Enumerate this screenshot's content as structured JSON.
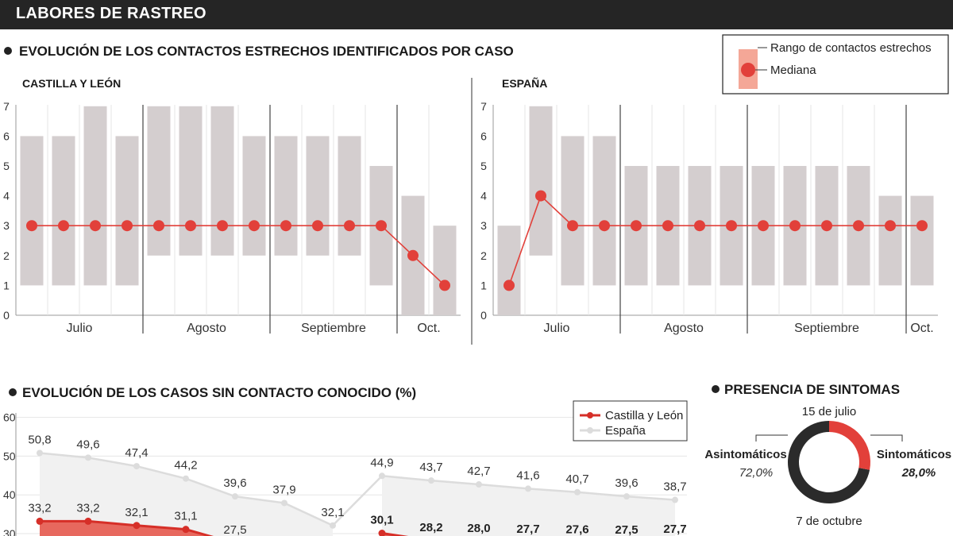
{
  "header": {
    "title": "LABORES DE RASTREO"
  },
  "section1": {
    "title": "EVOLUCIÓN DE LOS CONTACTOS ESTRECHOS IDENTIFICADOS POR CASO"
  },
  "legend1": {
    "range": "Rango de contactos estrechos",
    "median": "Mediana"
  },
  "section2": {
    "title": "EVOLUCIÓN DE LOS CASOS SIN CONTACTO CONOCIDO (%)"
  },
  "section3": {
    "title": "PRESENCIA DE SINTOMAS"
  },
  "colors": {
    "range_bar": "#d4cecf",
    "median": "#e2403a",
    "espana_line": "#dcdcdc",
    "espana_area": "#f1f1f1",
    "cyl_area": "#e7685e",
    "donut_dark": "#2b2b2b",
    "donut_red": "#e2403a",
    "legend_box": "#f4a797"
  },
  "chart_data": [
    {
      "type": "bar",
      "title": "CASTILLA Y LEÓN",
      "months": [
        "Julio",
        "Agosto",
        "Septiembre",
        "Oct."
      ],
      "weeks_per_month": [
        4,
        4,
        4,
        2
      ],
      "yticks": [
        0,
        1,
        2,
        3,
        4,
        5,
        6,
        7
      ],
      "ylim": [
        0,
        7
      ],
      "range_low": [
        1,
        1,
        1,
        1,
        2,
        2,
        2,
        2,
        2,
        2,
        2,
        1,
        0,
        0
      ],
      "range_high": [
        6,
        6,
        7,
        6,
        7,
        7,
        7,
        6,
        6,
        6,
        6,
        5,
        4,
        3
      ],
      "median": [
        3,
        3,
        3,
        3,
        3,
        3,
        3,
        3,
        3,
        3,
        3,
        3,
        2,
        1
      ]
    },
    {
      "type": "bar",
      "title": "ESPAÑA",
      "months": [
        "Julio",
        "Agosto",
        "Septiembre",
        "Oct."
      ],
      "weeks_per_month": [
        4,
        4,
        5,
        1
      ],
      "yticks": [
        0,
        1,
        2,
        3,
        4,
        5,
        6,
        7
      ],
      "ylim": [
        0,
        7
      ],
      "range_low": [
        0,
        2,
        1,
        1,
        1,
        1,
        1,
        1,
        1,
        1,
        1,
        1,
        1,
        1
      ],
      "range_high": [
        3,
        7,
        6,
        6,
        5,
        5,
        5,
        5,
        5,
        5,
        5,
        5,
        4,
        4
      ],
      "median": [
        1,
        4,
        3,
        3,
        3,
        3,
        3,
        3,
        3,
        3,
        3,
        3,
        3,
        3
      ]
    },
    {
      "type": "line",
      "yticks": [
        30,
        40,
        50,
        60
      ],
      "ylim": [
        30,
        60
      ],
      "series": [
        {
          "name": "Castilla y León",
          "values": [
            33.2,
            33.2,
            32.1,
            31.1,
            27.5,
            null,
            null,
            30.1,
            28.2,
            28.0,
            27.7,
            27.6,
            27.5,
            27.7
          ],
          "labels": [
            "33,2",
            "33,2",
            "32,1",
            "31,1",
            "27,5",
            "",
            "",
            "30,1",
            "28,2",
            "28,0",
            "27,7",
            "27,6",
            "27,5",
            "27,7"
          ]
        },
        {
          "name": "España",
          "values": [
            50.8,
            49.6,
            47.4,
            44.2,
            39.6,
            37.9,
            32.1,
            44.9,
            43.7,
            42.7,
            41.6,
            40.7,
            39.6,
            38.7
          ],
          "labels": [
            "50,8",
            "49,6",
            "47,4",
            "44,2",
            "39,6",
            "37,9",
            "32,1",
            "44,9",
            "43,7",
            "42,7",
            "41,6",
            "40,7",
            "39,6",
            "38,7"
          ]
        }
      ]
    },
    {
      "type": "pie",
      "top_label": "15 de julio",
      "bottom_label": "7 de octubre",
      "slices": [
        {
          "name": "Asintomáticos",
          "value": 72.0,
          "label": "72,0%"
        },
        {
          "name": "Sintomáticos",
          "value": 28.0,
          "label": "28,0%"
        }
      ]
    }
  ]
}
